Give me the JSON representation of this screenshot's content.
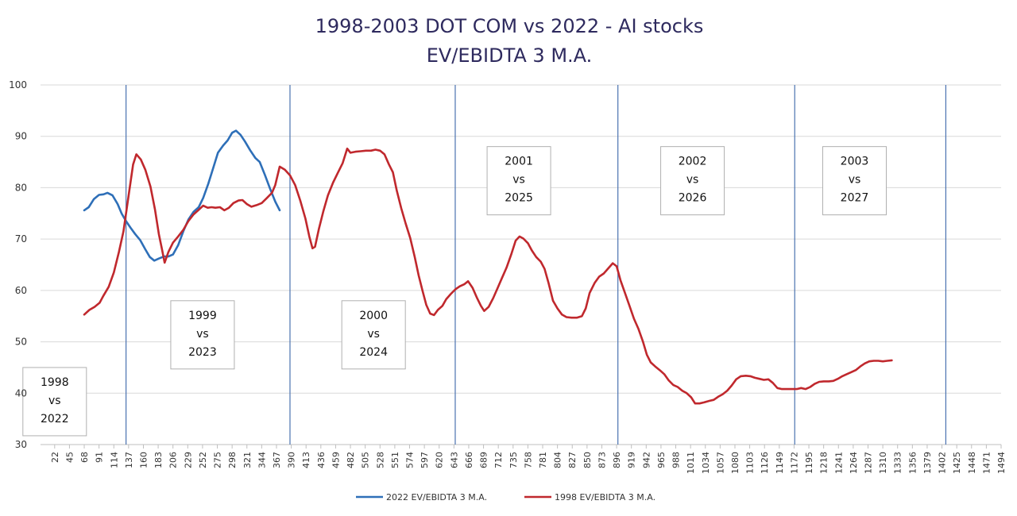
{
  "chart_data": {
    "type": "line",
    "title": "1998-2003 DOT COM vs 2022 - AI stocks",
    "subtitle": "EV/EBIDTA 3 M.A.",
    "ylim": [
      30,
      100
    ],
    "yticks": [
      30,
      40,
      50,
      60,
      70,
      80,
      90,
      100
    ],
    "xlim": [
      0,
      1494
    ],
    "xtick_labels": [
      "22",
      "45",
      "68",
      "91",
      "114",
      "137",
      "160",
      "183",
      "206",
      "229",
      "252",
      "275",
      "298",
      "321",
      "344",
      "367",
      "390",
      "413",
      "436",
      "459",
      "482",
      "505",
      "528",
      "551",
      "574",
      "597",
      "620",
      "643",
      "666",
      "689",
      "712",
      "735",
      "758",
      "781",
      "804",
      "827",
      "850",
      "873",
      "896",
      "919",
      "942",
      "965",
      "988",
      "1011",
      "1034",
      "1057",
      "1080",
      "1103",
      "1126",
      "1149",
      "1172",
      "1195",
      "1218",
      "1241",
      "1264",
      "1287",
      "1310",
      "1333",
      "1356",
      "1379",
      "1402",
      "1425",
      "1448",
      "1471",
      "1494"
    ],
    "grid": true,
    "legend_position": "bottom",
    "vertical_lines_x": [
      133,
      388,
      645,
      898,
      1173,
      1408
    ],
    "period_labels": [
      {
        "line1": "1998",
        "line2": "vs",
        "line3": "2022",
        "x": 22,
        "y": 45
      },
      {
        "line1": "1999",
        "line2": "vs",
        "line3": "2023",
        "x": 252,
        "y": 58
      },
      {
        "line1": "2000",
        "line2": "vs",
        "line3": "2024",
        "x": 518,
        "y": 58
      },
      {
        "line1": "2001",
        "line2": "vs",
        "line3": "2025",
        "x": 744,
        "y": 88
      },
      {
        "line1": "2002",
        "line2": "vs",
        "line3": "2026",
        "x": 1014,
        "y": 88
      },
      {
        "line1": "2003",
        "line2": "vs",
        "line3": "2027",
        "x": 1266,
        "y": 88
      }
    ],
    "series": [
      {
        "name": "2022 EV/EBIDTA 3 M.A.",
        "color": "#2e6fb8",
        "points": [
          [
            68,
            75.6
          ],
          [
            75,
            76.2
          ],
          [
            83,
            77.8
          ],
          [
            91,
            78.6
          ],
          [
            98,
            78.7
          ],
          [
            104,
            79.0
          ],
          [
            112,
            78.5
          ],
          [
            120,
            76.8
          ],
          [
            126,
            75.0
          ],
          [
            133,
            73.5
          ],
          [
            140,
            72.2
          ],
          [
            147,
            71.0
          ],
          [
            155,
            69.8
          ],
          [
            163,
            68.0
          ],
          [
            170,
            66.5
          ],
          [
            177,
            65.8
          ],
          [
            184,
            66.2
          ],
          [
            192,
            66.6
          ],
          [
            199,
            66.6
          ],
          [
            206,
            67.0
          ],
          [
            214,
            68.8
          ],
          [
            222,
            71.5
          ],
          [
            230,
            73.8
          ],
          [
            238,
            75.3
          ],
          [
            246,
            76.2
          ],
          [
            253,
            78.0
          ],
          [
            261,
            80.8
          ],
          [
            269,
            84.0
          ],
          [
            276,
            86.8
          ],
          [
            284,
            88.2
          ],
          [
            291,
            89.2
          ],
          [
            298,
            90.7
          ],
          [
            304,
            91.1
          ],
          [
            311,
            90.3
          ],
          [
            318,
            89.0
          ],
          [
            326,
            87.3
          ],
          [
            334,
            85.8
          ],
          [
            341,
            85.0
          ],
          [
            349,
            82.5
          ],
          [
            357,
            79.8
          ],
          [
            365,
            77.3
          ],
          [
            372,
            75.6
          ]
        ]
      },
      {
        "name": "1998 EV/EBIDTA 3 M.A.",
        "color": "#c0282d",
        "points": [
          [
            68,
            55.3
          ],
          [
            76,
            56.2
          ],
          [
            84,
            56.8
          ],
          [
            92,
            57.6
          ],
          [
            98,
            59.0
          ],
          [
            106,
            60.7
          ],
          [
            114,
            63.5
          ],
          [
            122,
            67.5
          ],
          [
            129,
            71.5
          ],
          [
            137,
            78.5
          ],
          [
            144,
            84.5
          ],
          [
            149,
            86.5
          ],
          [
            156,
            85.5
          ],
          [
            163,
            83.5
          ],
          [
            171,
            80.2
          ],
          [
            178,
            75.8
          ],
          [
            184,
            71.0
          ],
          [
            189,
            68.0
          ],
          [
            193,
            65.4
          ],
          [
            199,
            67.5
          ],
          [
            206,
            69.3
          ],
          [
            214,
            70.5
          ],
          [
            222,
            71.8
          ],
          [
            230,
            73.5
          ],
          [
            238,
            74.8
          ],
          [
            246,
            75.7
          ],
          [
            253,
            76.5
          ],
          [
            260,
            76.1
          ],
          [
            266,
            76.2
          ],
          [
            272,
            76.1
          ],
          [
            279,
            76.2
          ],
          [
            286,
            75.6
          ],
          [
            293,
            76.1
          ],
          [
            300,
            77.0
          ],
          [
            308,
            77.5
          ],
          [
            314,
            77.6
          ],
          [
            321,
            76.8
          ],
          [
            328,
            76.3
          ],
          [
            336,
            76.6
          ],
          [
            344,
            77.0
          ],
          [
            352,
            78.0
          ],
          [
            360,
            79.0
          ],
          [
            365,
            80.5
          ],
          [
            372,
            84.1
          ],
          [
            380,
            83.5
          ],
          [
            388,
            82.4
          ],
          [
            396,
            80.5
          ],
          [
            404,
            77.5
          ],
          [
            412,
            74.0
          ],
          [
            418,
            70.5
          ],
          [
            423,
            68.2
          ],
          [
            427,
            68.5
          ],
          [
            433,
            72.0
          ],
          [
            440,
            75.5
          ],
          [
            447,
            78.5
          ],
          [
            455,
            81.0
          ],
          [
            462,
            82.8
          ],
          [
            470,
            84.8
          ],
          [
            477,
            87.6
          ],
          [
            482,
            86.8
          ],
          [
            490,
            87.0
          ],
          [
            498,
            87.1
          ],
          [
            506,
            87.2
          ],
          [
            514,
            87.2
          ],
          [
            521,
            87.4
          ],
          [
            528,
            87.2
          ],
          [
            535,
            86.5
          ],
          [
            542,
            84.5
          ],
          [
            548,
            83.0
          ],
          [
            554,
            79.5
          ],
          [
            561,
            76.0
          ],
          [
            568,
            73.0
          ],
          [
            575,
            70.2
          ],
          [
            582,
            66.5
          ],
          [
            588,
            63.0
          ],
          [
            594,
            60.0
          ],
          [
            600,
            57.2
          ],
          [
            606,
            55.5
          ],
          [
            612,
            55.2
          ],
          [
            618,
            56.2
          ],
          [
            625,
            57.0
          ],
          [
            631,
            58.3
          ],
          [
            638,
            59.3
          ],
          [
            645,
            60.2
          ],
          [
            652,
            60.8
          ],
          [
            659,
            61.2
          ],
          [
            665,
            61.8
          ],
          [
            672,
            60.5
          ],
          [
            679,
            58.5
          ],
          [
            685,
            57.0
          ],
          [
            690,
            56.0
          ],
          [
            697,
            56.8
          ],
          [
            704,
            58.5
          ],
          [
            711,
            60.5
          ],
          [
            718,
            62.5
          ],
          [
            725,
            64.5
          ],
          [
            732,
            67.0
          ],
          [
            739,
            69.7
          ],
          [
            745,
            70.5
          ],
          [
            751,
            70.1
          ],
          [
            758,
            69.2
          ],
          [
            764,
            67.8
          ],
          [
            771,
            66.5
          ],
          [
            778,
            65.6
          ],
          [
            784,
            64.2
          ],
          [
            790,
            61.5
          ],
          [
            797,
            58.0
          ],
          [
            804,
            56.5
          ],
          [
            811,
            55.3
          ],
          [
            818,
            54.8
          ],
          [
            826,
            54.7
          ],
          [
            834,
            54.7
          ],
          [
            842,
            55.0
          ],
          [
            848,
            56.5
          ],
          [
            854,
            59.5
          ],
          [
            862,
            61.5
          ],
          [
            869,
            62.7
          ],
          [
            876,
            63.3
          ],
          [
            883,
            64.3
          ],
          [
            890,
            65.3
          ],
          [
            896,
            64.7
          ],
          [
            902,
            62.0
          ],
          [
            909,
            59.5
          ],
          [
            916,
            57.0
          ],
          [
            923,
            54.5
          ],
          [
            930,
            52.5
          ],
          [
            937,
            50.0
          ],
          [
            943,
            47.5
          ],
          [
            949,
            46.0
          ],
          [
            956,
            45.2
          ],
          [
            963,
            44.5
          ],
          [
            970,
            43.7
          ],
          [
            977,
            42.5
          ],
          [
            984,
            41.6
          ],
          [
            991,
            41.2
          ],
          [
            998,
            40.5
          ],
          [
            1005,
            40.0
          ],
          [
            1012,
            39.2
          ],
          [
            1018,
            38.0
          ],
          [
            1025,
            38.0
          ],
          [
            1032,
            38.2
          ],
          [
            1040,
            38.5
          ],
          [
            1047,
            38.7
          ],
          [
            1054,
            39.3
          ],
          [
            1061,
            39.8
          ],
          [
            1068,
            40.5
          ],
          [
            1075,
            41.5
          ],
          [
            1082,
            42.7
          ],
          [
            1089,
            43.3
          ],
          [
            1097,
            43.4
          ],
          [
            1104,
            43.3
          ],
          [
            1111,
            43.0
          ],
          [
            1118,
            42.8
          ],
          [
            1125,
            42.6
          ],
          [
            1132,
            42.7
          ],
          [
            1139,
            42.0
          ],
          [
            1146,
            41.0
          ],
          [
            1153,
            40.8
          ],
          [
            1161,
            40.8
          ],
          [
            1168,
            40.8
          ],
          [
            1176,
            40.8
          ],
          [
            1183,
            41.0
          ],
          [
            1190,
            40.8
          ],
          [
            1197,
            41.2
          ],
          [
            1204,
            41.8
          ],
          [
            1211,
            42.2
          ],
          [
            1218,
            42.3
          ],
          [
            1226,
            42.3
          ],
          [
            1233,
            42.4
          ],
          [
            1240,
            42.8
          ],
          [
            1247,
            43.3
          ],
          [
            1254,
            43.7
          ],
          [
            1261,
            44.1
          ],
          [
            1268,
            44.5
          ],
          [
            1275,
            45.2
          ],
          [
            1282,
            45.8
          ],
          [
            1289,
            46.2
          ],
          [
            1296,
            46.3
          ],
          [
            1303,
            46.3
          ],
          [
            1310,
            46.2
          ],
          [
            1317,
            46.3
          ],
          [
            1324,
            46.4
          ]
        ]
      }
    ]
  }
}
